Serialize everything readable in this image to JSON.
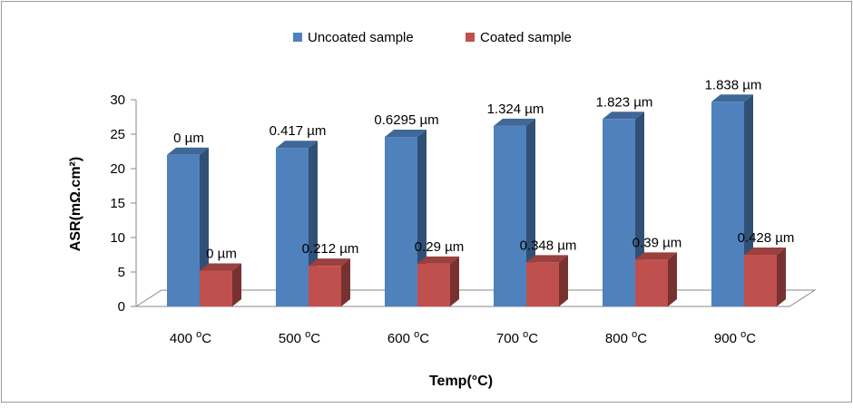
{
  "chart_data": {
    "type": "bar",
    "categories": [
      "400 °C",
      "500 °C",
      "600 °C",
      "700 °C",
      "800 °C",
      "900 °C"
    ],
    "series": [
      {
        "name": "Uncoated sample",
        "color": "#4f81bd",
        "values": [
          22,
          23,
          24.6,
          26.2,
          27.2,
          29.7
        ],
        "labels": [
          "0 µm",
          "0.417 µm",
          "0.6295 µm",
          "1.324 µm",
          "1.823 µm",
          "1.838 µm"
        ]
      },
      {
        "name": "Coated sample",
        "color": "#c0504d",
        "values": [
          5.2,
          5.9,
          6.2,
          6.4,
          6.8,
          7.5
        ],
        "labels": [
          "0 µm",
          "0.212 µm",
          "0.29 µm",
          "0.348 µm",
          "0.39 µm",
          "0.428 µm"
        ]
      }
    ],
    "xlabel": "Temp(°C)",
    "ylabel": "ASR(mΩ.cm²)",
    "ylim": [
      0,
      30
    ],
    "yticks": [
      "0",
      "5",
      "10",
      "15",
      "20",
      "25",
      "30"
    ],
    "legend_position": "top",
    "grid": false,
    "style": "3d-column"
  }
}
